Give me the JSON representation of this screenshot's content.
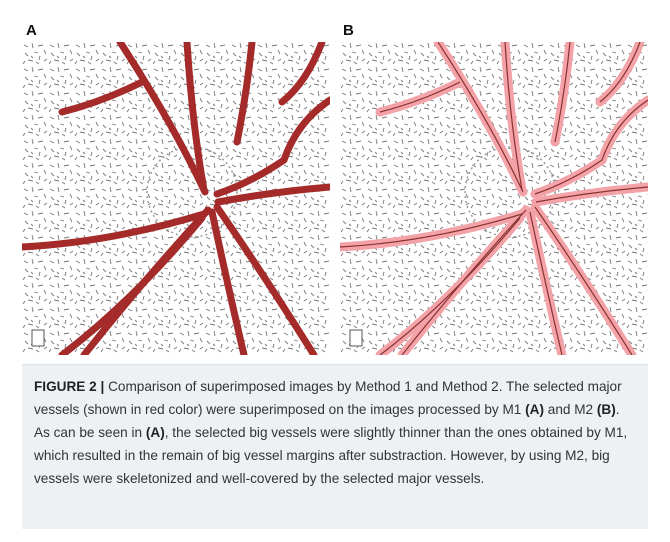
{
  "figure": {
    "panels": [
      {
        "label": "A"
      },
      {
        "label": "B"
      }
    ],
    "caption": {
      "label": "FIGURE 2 |",
      "parts": [
        "Comparison of superimposed images by Method 1 and Method 2. The selected major vessels (shown in red color) were superimposed on the images processed by M1",
        "(A)",
        "and M2",
        "(B)",
        ". As can be seen in",
        "(A)",
        ", the selected big vessels were slightly thinner than the ones obtained by M1, which resulted in the remain of big vessel margins after substraction. However, by using M2, big vessels were skeletonized and well-covered by the selected major vessels."
      ]
    }
  }
}
